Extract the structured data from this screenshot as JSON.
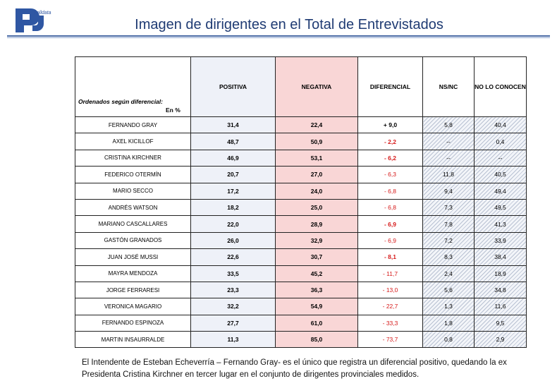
{
  "logo_text": "polldata",
  "title": "Imagen de dirigentes en el Total de Entrevistados",
  "table": {
    "corner_label": "Ordenados según diferencial:",
    "corner_unit": "En %",
    "headers": [
      "POSITIVA",
      "NEGATIVA",
      "DIFERENCIAL",
      "NS/NC",
      "NO LO CONOCEN"
    ],
    "rows": [
      {
        "name": "FERNANDO GRAY",
        "positiva": "31,4",
        "negativa": "22,4",
        "diferencial": "+ 9,0",
        "nsnc": "5,8",
        "no_conocen": "40,4"
      },
      {
        "name": "AXEL KICILLOF",
        "positiva": "48,7",
        "negativa": "50,9",
        "diferencial": "- 2,2",
        "nsnc": "--",
        "no_conocen": "0,4"
      },
      {
        "name": "CRISTINA KIRCHNER",
        "positiva": "46,9",
        "negativa": "53,1",
        "diferencial": "- 6,2",
        "nsnc": "--",
        "no_conocen": "--"
      },
      {
        "name": "FEDERICO OTERMÍN",
        "positiva": "20,7",
        "negativa": "27,0",
        "diferencial": "- 6,3",
        "nsnc": "11,8",
        "no_conocen": "40,5"
      },
      {
        "name": "MARIO SECCO",
        "positiva": "17,2",
        "negativa": "24,0",
        "diferencial": "- 6,8",
        "nsnc": "9,4",
        "no_conocen": "49,4"
      },
      {
        "name": "ANDRÉS WATSON",
        "positiva": "18,2",
        "negativa": "25,0",
        "diferencial": "- 6,8",
        "nsnc": "7,3",
        "no_conocen": "49,5"
      },
      {
        "name": "MARIANO CASCALLARES",
        "positiva": "22,0",
        "negativa": "28,9",
        "diferencial": "- 6,9",
        "nsnc": "7,8",
        "no_conocen": "41,3"
      },
      {
        "name": "GASTÓN GRANADOS",
        "positiva": "26,0",
        "negativa": "32,9",
        "diferencial": "- 6,9",
        "nsnc": "7,2",
        "no_conocen": "33,9"
      },
      {
        "name": "JUAN JOSÉ MUSSI",
        "positiva": "22,6",
        "negativa": "30,7",
        "diferencial": "- 8,1",
        "nsnc": "8,3",
        "no_conocen": "38,4"
      },
      {
        "name": "MAYRA MENDOZA",
        "positiva": "33,5",
        "negativa": "45,2",
        "diferencial": "- 11,7",
        "nsnc": "2,4",
        "no_conocen": "18,9"
      },
      {
        "name": "JORGE FERRARESI",
        "positiva": "23,3",
        "negativa": "36,3",
        "diferencial": "- 13,0",
        "nsnc": "5,6",
        "no_conocen": "34,8"
      },
      {
        "name": "VERONICA MAGARIO",
        "positiva": "32,2",
        "negativa": "54,9",
        "diferencial": "- 22,7",
        "nsnc": "1,3",
        "no_conocen": "11,6"
      },
      {
        "name": "FERNANDO ESPINOZA",
        "positiva": "27,7",
        "negativa": "61,0",
        "diferencial": "- 33,3",
        "nsnc": "1,8",
        "no_conocen": "9,5"
      },
      {
        "name": "MARTIN INSAURRALDE",
        "positiva": "11,3",
        "negativa": "85,0",
        "diferencial": "- 73,7",
        "nsnc": "0,8",
        "no_conocen": "2,9"
      }
    ]
  },
  "footer_text": "El Intendente de Esteban Echeverría – Fernando Gray- es el único que registra un diferencial positivo, quedando la ex Presidenta Cristina Kirchner en tercer lugar en el conjunto de dirigentes provinciales medidos.",
  "colors": {
    "title": "#1f3b73",
    "positive_col": "#eef1f8",
    "negative_col": "#f9d6d6",
    "negative_diff": "#d61a1a"
  }
}
